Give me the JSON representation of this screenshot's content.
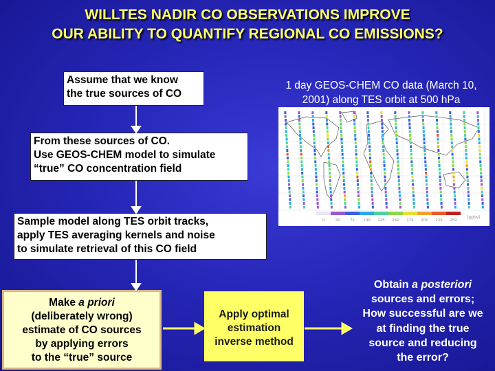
{
  "title": {
    "line1": "WILLTES NADIR CO OBSERVATIONS IMPROVE",
    "line2": "OUR ABILITY TO QUANTIFY REGIONAL CO EMISSIONS?"
  },
  "steps": {
    "assume": {
      "line1": "Assume that we know",
      "line2": "the true sources of CO"
    },
    "simulate": {
      "line1": "From these sources of CO.",
      "line2": "Use GEOS-CHEM model to simulate",
      "line3": "“true” CO concentration field"
    },
    "sample": {
      "line1": "Sample model along TES orbit tracks,",
      "line2": "apply TES averaging kernels and noise",
      "line3": "to simulate retrieval of this CO field"
    },
    "apriori": {
      "line1_pre": "Make ",
      "line1_em": "a priori",
      "line2": "(deliberately wrong)",
      "line3": "estimate of CO sources",
      "line4": "by applying errors",
      "line5": "to the “true” source"
    },
    "inverse": {
      "line1": "Apply optimal",
      "line2": "estimation",
      "line3": "inverse method"
    }
  },
  "map": {
    "caption_line1": "1 day GEOS-CHEM CO  data (March 10,",
    "caption_line2": "2001) along TES orbit at 500 hPa",
    "colorbar_ticks": [
      "0",
      "50",
      "75",
      "100",
      "125",
      "150",
      "175",
      "200",
      "225",
      "250"
    ],
    "colorbar_unit": "(ppbv)",
    "colors": [
      "#e6e6f5",
      "#9b59d0",
      "#3a60e0",
      "#27a9e8",
      "#49d2a0",
      "#8bd84a",
      "#e8e030",
      "#f2a030",
      "#e85a28",
      "#c02020"
    ]
  },
  "outcome": {
    "line1": "Obtain ",
    "line1_em": "a posteriori",
    "line2": "sources and errors;",
    "line3": "How successful are we",
    "line4": "at finding the true",
    "line5": "source and reducing",
    "line6": "the error?"
  }
}
